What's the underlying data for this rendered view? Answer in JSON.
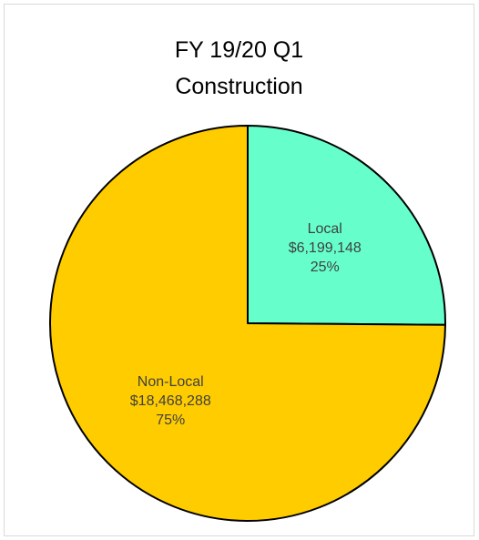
{
  "chart_data": {
    "type": "pie",
    "title": [
      "FY 19/20 Q1",
      "Construction"
    ],
    "slices": [
      {
        "name": "Local",
        "value": 6199148,
        "value_label": "$6,199,148",
        "percent_label": "25%",
        "color": "#66ffcc"
      },
      {
        "name": "Non-Local",
        "value": 18468288,
        "value_label": "$18,468,288",
        "percent_label": "75%",
        "color": "#ffcc00"
      }
    ],
    "start": "12 o'clock",
    "direction": "clockwise",
    "legend": "none"
  }
}
